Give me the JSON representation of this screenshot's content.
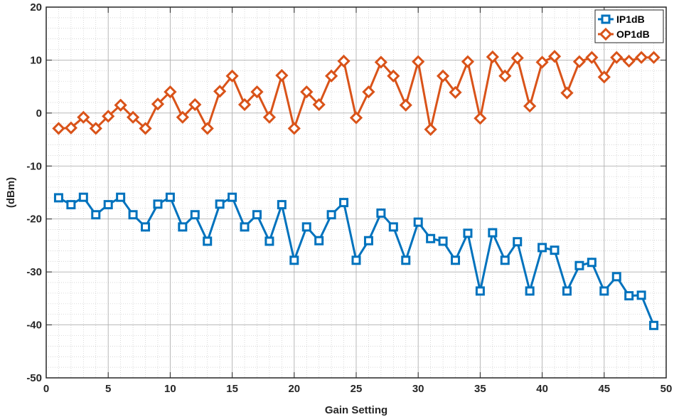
{
  "chart_data": {
    "type": "line",
    "title": "",
    "xlabel": "Gain Setting",
    "ylabel": "(dBm)",
    "xlim": [
      0,
      50
    ],
    "ylim": [
      -50,
      20
    ],
    "xticks": [
      0,
      5,
      10,
      15,
      20,
      25,
      30,
      35,
      40,
      45,
      50
    ],
    "yticks": [
      -50,
      -40,
      -30,
      -20,
      -10,
      0,
      10,
      20
    ],
    "grid": true,
    "minor_grid": true,
    "legend_position": "top-right",
    "x": [
      1,
      2,
      3,
      4,
      5,
      6,
      7,
      8,
      9,
      10,
      11,
      12,
      13,
      14,
      15,
      16,
      17,
      18,
      19,
      20,
      21,
      22,
      23,
      24,
      25,
      26,
      27,
      28,
      29,
      30,
      31,
      32,
      33,
      34,
      35,
      36,
      37,
      38,
      39,
      40,
      41,
      42,
      43,
      44,
      45,
      46,
      47,
      48,
      49
    ],
    "series": [
      {
        "name": "IP1dB",
        "color": "#0072BD",
        "marker": "square",
        "values": [
          -16,
          -17.3,
          -15.9,
          -19.2,
          -17.3,
          -15.9,
          -19.2,
          -21.5,
          -17.2,
          -15.9,
          -21.5,
          -19.2,
          -24.2,
          -17.2,
          -15.9,
          -21.5,
          -19.2,
          -24.2,
          -17.3,
          -27.8,
          -21.5,
          -24.1,
          -19.2,
          -16.9,
          -27.8,
          -24.1,
          -18.9,
          -21.5,
          -27.8,
          -20.6,
          -23.7,
          -24.2,
          -27.8,
          -22.7,
          -33.6,
          -22.6,
          -27.8,
          -24.3,
          -33.6,
          -25.4,
          -25.9,
          -33.6,
          -28.8,
          -28.2,
          -33.6,
          -30.9,
          -34.5,
          -34.4,
          -40.1
        ]
      },
      {
        "name": "OP1dB",
        "color": "#D95319",
        "marker": "diamond",
        "values": [
          -2.9,
          -2.8,
          -0.8,
          -2.9,
          -0.6,
          1.5,
          -0.8,
          -2.9,
          1.7,
          4,
          -0.8,
          1.6,
          -2.9,
          4.1,
          7,
          1.6,
          4,
          -0.8,
          7.1,
          -2.9,
          4,
          1.6,
          7,
          9.8,
          -0.9,
          4,
          9.6,
          7,
          1.5,
          9.7,
          -3.1,
          7,
          3.9,
          9.7,
          -1,
          10.6,
          7,
          10.4,
          1.3,
          9.6,
          10.7,
          3.8,
          9.7,
          10.5,
          6.8,
          10.5,
          9.8,
          10.5,
          10.5
        ]
      }
    ]
  }
}
